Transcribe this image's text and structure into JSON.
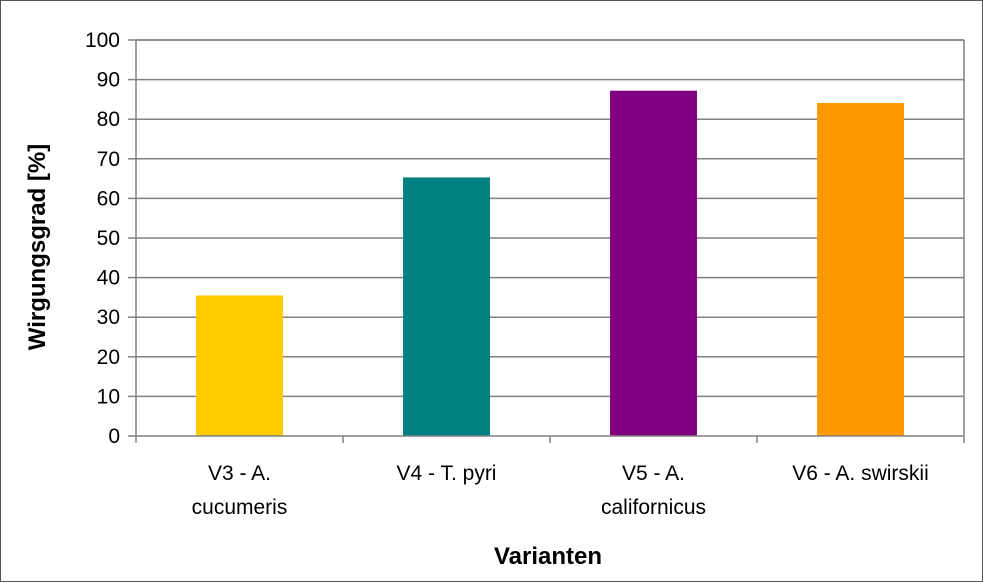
{
  "chart_data": {
    "type": "bar",
    "title": "",
    "xlabel": "Varianten",
    "ylabel": "Wirgungsgrad [%]",
    "ylim": [
      0,
      100
    ],
    "yticks": [
      0,
      10,
      20,
      30,
      40,
      50,
      60,
      70,
      80,
      90,
      100
    ],
    "grid": true,
    "legend": "none",
    "categories": [
      [
        "V3 - A.",
        "cucumeris"
      ],
      [
        "V4 - T. pyri"
      ],
      [
        "V5 - A.",
        "californicus"
      ],
      [
        "V6 - A. swirskii"
      ]
    ],
    "values": [
      35.5,
      65.3,
      87.2,
      84.1
    ],
    "colors": [
      "#FFCC00",
      "#008080",
      "#800080",
      "#FF9900"
    ]
  }
}
